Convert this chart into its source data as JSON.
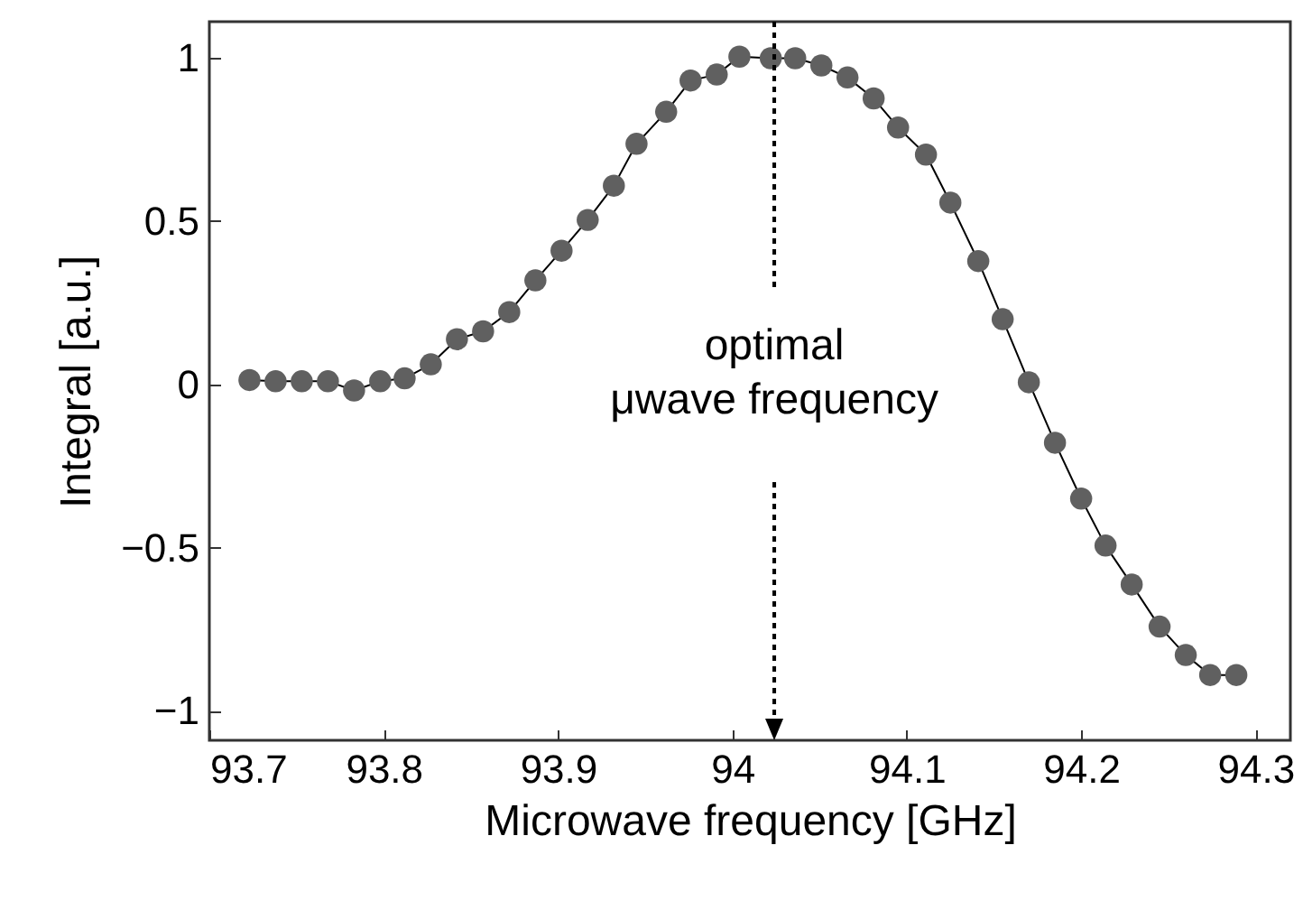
{
  "chart_data": {
    "type": "line",
    "xlabel": "Microwave frequency [GHz]",
    "ylabel": "Integral [a.u.]",
    "x": [
      93.723,
      93.738,
      93.753,
      93.768,
      93.783,
      93.798,
      93.812,
      93.827,
      93.842,
      93.857,
      93.872,
      93.887,
      93.902,
      93.917,
      93.932,
      93.945,
      93.962,
      93.976,
      93.991,
      94.004,
      94.022,
      94.036,
      94.051,
      94.066,
      94.081,
      94.095,
      94.111,
      94.125,
      94.141,
      94.155,
      94.17,
      94.185,
      94.2,
      94.214,
      94.229,
      94.245,
      94.26,
      94.274,
      94.289
    ],
    "series": [
      {
        "color": "#606060",
        "values": [
          0.013,
          0.009,
          0.009,
          0.009,
          -0.019,
          0.009,
          0.018,
          0.061,
          0.138,
          0.162,
          0.221,
          0.318,
          0.409,
          0.503,
          0.608,
          0.736,
          0.834,
          0.93,
          0.948,
          1.003,
          0.998,
          0.998,
          0.976,
          0.939,
          0.875,
          0.786,
          0.703,
          0.556,
          0.377,
          0.199,
          0.006,
          -0.179,
          -0.35,
          -0.494,
          -0.613,
          -0.742,
          -0.829,
          -0.89,
          -0.89
        ]
      }
    ],
    "marker": "circle",
    "line_style": "solid",
    "xlim": [
      93.7,
      94.32
    ],
    "xticks": [
      93.7,
      93.8,
      93.9,
      94,
      94.1,
      94.2,
      94.3
    ],
    "ylim": [
      -1.09,
      1.11
    ],
    "yticks": [
      -1,
      -0.5,
      0,
      0.5,
      1
    ],
    "ref_lines": [
      {
        "axis": "x",
        "value": 94.024,
        "label": "optimal\nμwave frequency",
        "line_style": "dotted",
        "color": "#000000"
      }
    ],
    "grid": false
  }
}
